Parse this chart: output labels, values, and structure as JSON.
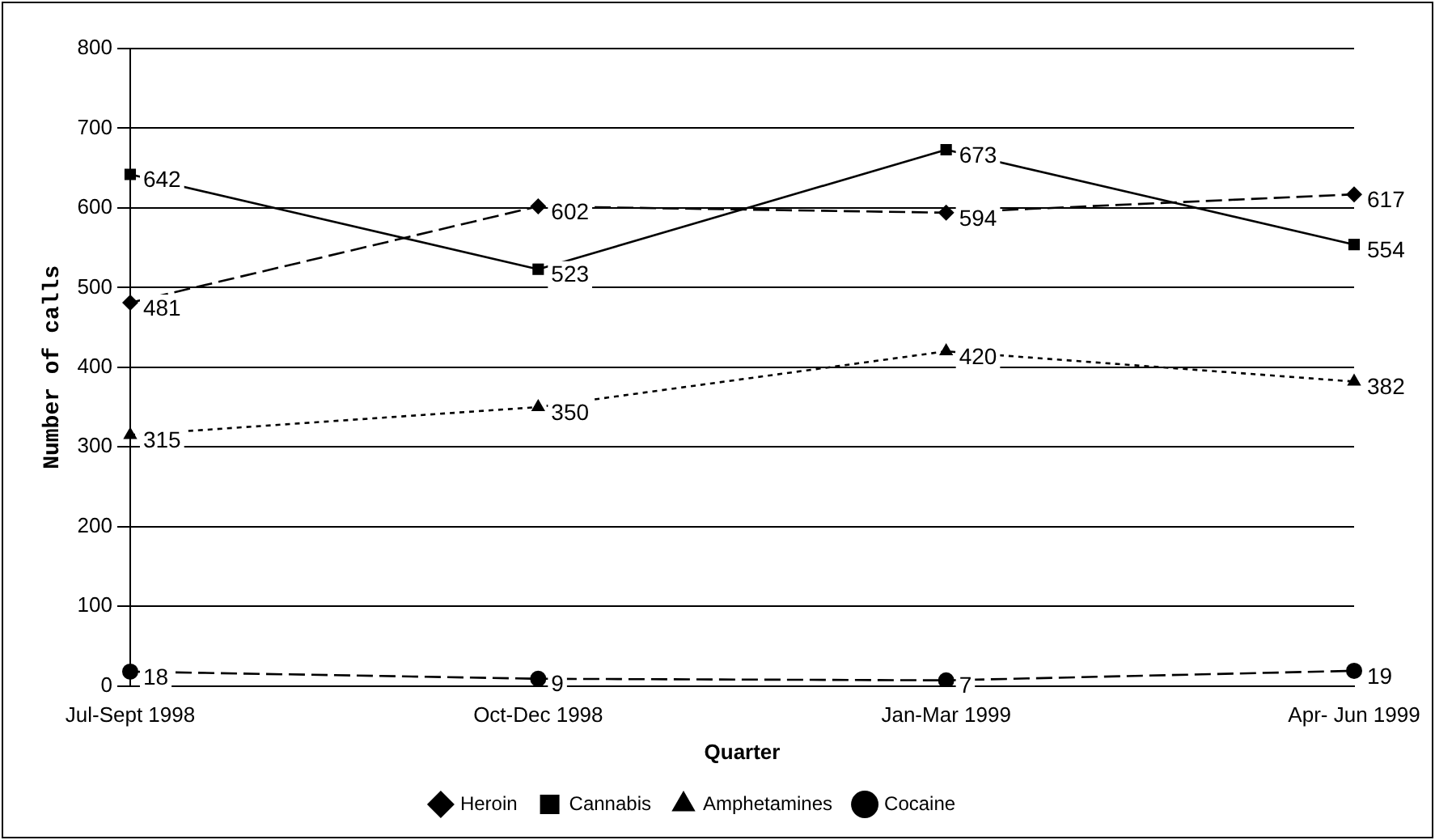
{
  "chart_data": {
    "type": "line",
    "xlabel": "Quarter",
    "ylabel": "Number of calls",
    "categories": [
      "Jul-Sept 1998",
      "Oct-Dec 1998",
      "Jan-Mar 1999",
      "Apr- Jun 1999"
    ],
    "series": [
      {
        "name": "Heroin",
        "color": "#000000",
        "values": [
          481,
          602,
          594,
          617
        ],
        "marker": "diamond",
        "line_style": "dashed"
      },
      {
        "name": "Cannabis",
        "color": "#000000",
        "values": [
          642,
          523,
          673,
          554
        ],
        "marker": "square",
        "line_style": "solid"
      },
      {
        "name": "Amphetamines",
        "color": "#000000",
        "values": [
          315,
          350,
          420,
          382
        ],
        "marker": "triangle",
        "line_style": "dotted"
      },
      {
        "name": "Cocaine",
        "color": "#000000",
        "values": [
          18,
          9,
          7,
          19
        ],
        "marker": "circle",
        "line_style": "dashed"
      }
    ],
    "ylim": [
      0,
      800
    ],
    "yticks": [
      0,
      100,
      200,
      300,
      400,
      500,
      600,
      700,
      800
    ],
    "grid": "y",
    "legend": "bottom",
    "data_labels": true
  }
}
